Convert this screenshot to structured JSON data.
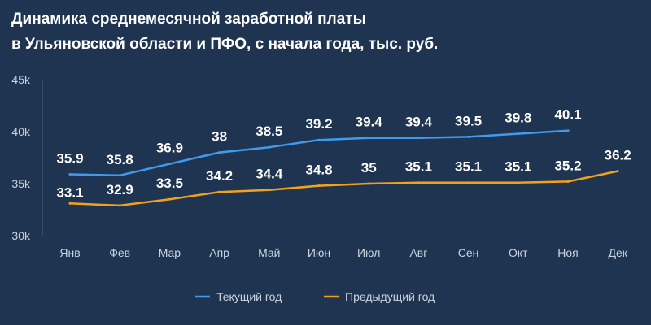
{
  "chart_data": {
    "type": "line",
    "title": [
      "Динамика среднемесячной заработной платы",
      "в Ульяновской области и ПФО, с начала года,  тыс. руб."
    ],
    "categories": [
      "Янв",
      "Фев",
      "Мар",
      "Апр",
      "Май",
      "Июн",
      "Июл",
      "Авг",
      "Сен",
      "Окт",
      "Ноя",
      "Дек"
    ],
    "yticks": [
      "30k",
      "35k",
      "40k",
      "45k"
    ],
    "ylim": [
      30,
      45
    ],
    "grid": false,
    "legend_position": "bottom",
    "series": [
      {
        "name": "Текущий год",
        "color": "#3d9bf0",
        "values": [
          35.9,
          35.8,
          36.9,
          38,
          38.5,
          39.2,
          39.4,
          39.4,
          39.5,
          39.8,
          40.1,
          null
        ],
        "labels": [
          "35.9",
          "35.8",
          "36.9",
          "38",
          "38.5",
          "39.2",
          "39.4",
          "39.4",
          "39.5",
          "39.8",
          "40.1",
          ""
        ]
      },
      {
        "name": "Предыдущий год",
        "color": "#f0a21c",
        "values": [
          33.1,
          32.9,
          33.5,
          34.2,
          34.4,
          34.8,
          35,
          35.1,
          35.1,
          35.1,
          35.2,
          36.2
        ],
        "labels": [
          "33.1",
          "32.9",
          "33.5",
          "34.2",
          "34.4",
          "34.8",
          "35",
          "35.1",
          "35.1",
          "35.1",
          "35.2",
          "36.2"
        ]
      }
    ]
  }
}
